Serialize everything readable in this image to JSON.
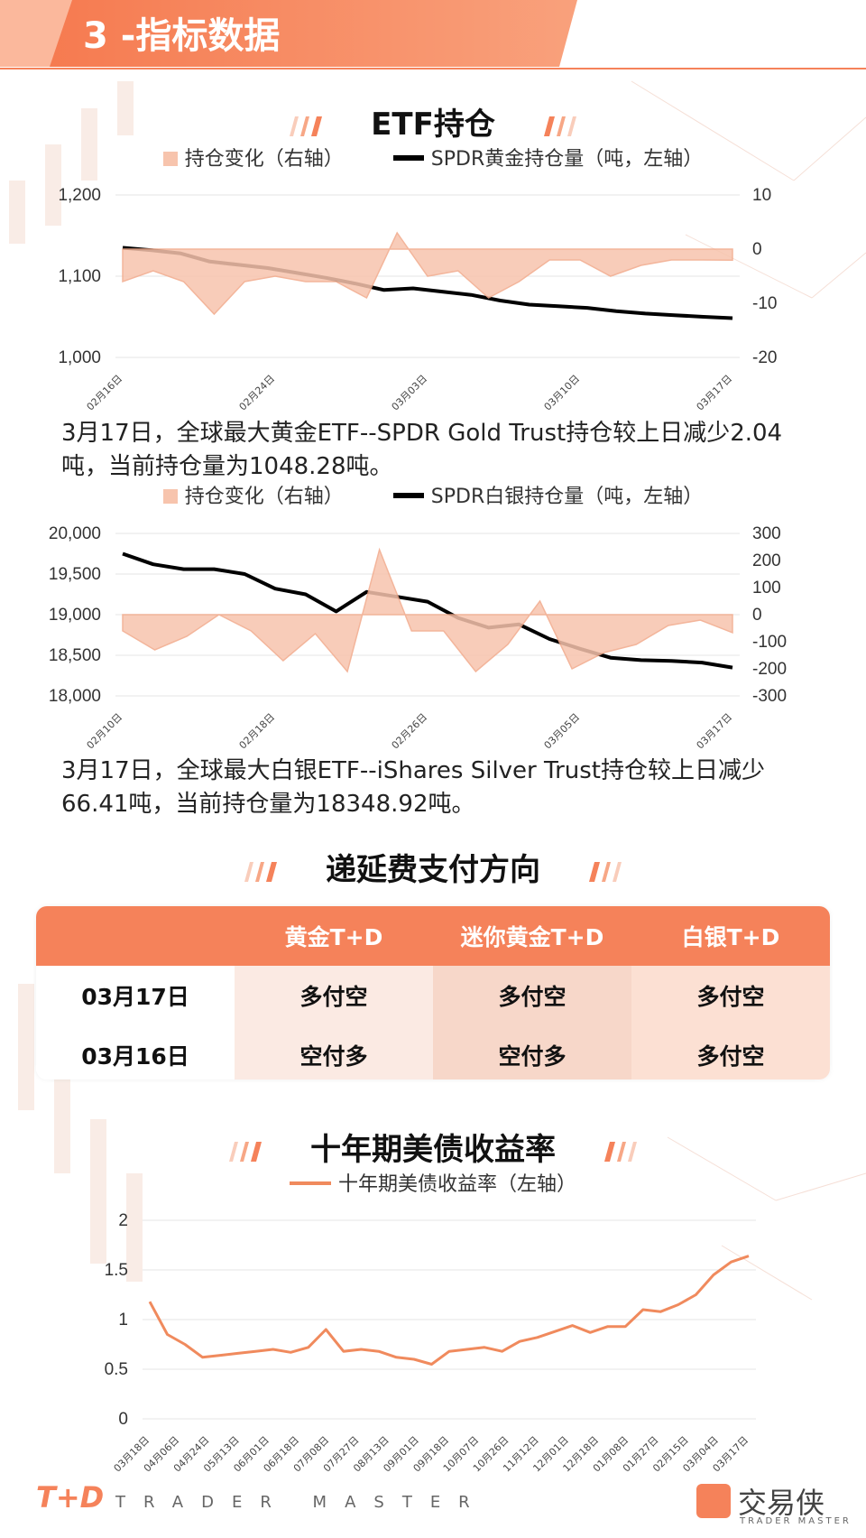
{
  "header": {
    "title": "3 -指标数据"
  },
  "etf": {
    "title": "ETF持仓",
    "gold": {
      "legend_fill": "持仓变化（右轴）",
      "legend_line": "SPDR黄金持仓量（吨，左轴）",
      "note": "3月17日，全球最大黄金ETF--SPDR Gold Trust持仓较上日减少2.04吨，当前持仓量为1048.28吨。"
    },
    "silver": {
      "legend_fill": "持仓变化（右轴）",
      "legend_line": "SPDR白银持仓量（吨，左轴）",
      "note": "3月17日，全球最大白银ETF--iShares Silver Trust持仓较上日减少66.41吨，当前持仓量为18348.92吨。"
    }
  },
  "fee": {
    "title": "递延费支付方向",
    "headers": [
      "",
      "黄金T+D",
      "迷你黄金T+D",
      "白银T+D"
    ],
    "rows": [
      [
        "03月17日",
        "多付空",
        "多付空",
        "多付空"
      ],
      [
        "03月16日",
        "空付多",
        "空付多",
        "多付空"
      ]
    ]
  },
  "yield": {
    "title": "十年期美债收益率",
    "legend": "十年期美债收益率（左轴）"
  },
  "footer": {
    "logo": "T+D",
    "tagline": "TRADER MASTER",
    "brand": "交易侠",
    "brand_sub": "TRADER MASTER"
  },
  "colors": {
    "accent": "#f5825a",
    "fill": "#f7c4ad",
    "line": "#000000",
    "yield_line": "#f08a5d"
  },
  "chart_data": [
    {
      "type": "line",
      "left_axis": {
        "ticks": [
          "1,000",
          "1,100",
          "1,200"
        ],
        "range": [
          1000,
          1200
        ]
      },
      "right_axis": {
        "ticks": [
          "-20",
          "-10",
          "0",
          "10"
        ],
        "range": [
          -20,
          10
        ]
      },
      "x_labels": [
        "02月16日",
        "02月24日",
        "03月03日",
        "03月10日",
        "03月17日"
      ],
      "grid": true,
      "legend_position": "top",
      "series": [
        {
          "name": "SPDR黄金持仓量（吨，左轴）",
          "kind": "line",
          "axis": "left",
          "values": [
            1135,
            1132,
            1128,
            1118,
            1114,
            1110,
            1104,
            1098,
            1091,
            1083,
            1085,
            1081,
            1077,
            1070,
            1065,
            1063,
            1061,
            1057,
            1054,
            1052,
            1050,
            1048.28
          ]
        },
        {
          "name": "持仓变化（右轴）",
          "kind": "area",
          "axis": "right",
          "values": [
            -6,
            -4,
            -6,
            -12,
            -6,
            -5,
            -6,
            -6,
            -9,
            3,
            -5,
            -4,
            -9,
            -6,
            -2,
            -2,
            -5,
            -3,
            -2,
            -2,
            -2.04
          ]
        }
      ]
    },
    {
      "type": "line",
      "left_axis": {
        "ticks": [
          "18,000",
          "18,500",
          "19,000",
          "19,500",
          "20,000"
        ],
        "range": [
          18000,
          20000
        ]
      },
      "right_axis": {
        "ticks": [
          "-300",
          "-200",
          "-100",
          "0",
          "100",
          "200",
          "300"
        ],
        "range": [
          -300,
          300
        ]
      },
      "x_labels": [
        "02月10日",
        "02月18日",
        "02月26日",
        "03月05日",
        "03月17日"
      ],
      "grid": true,
      "legend_position": "top",
      "series": [
        {
          "name": "SPDR白银持仓量（吨，左轴）",
          "kind": "line",
          "axis": "left",
          "values": [
            19750,
            19620,
            19560,
            19560,
            19500,
            19320,
            19250,
            19040,
            19280,
            19220,
            19160,
            18960,
            18840,
            18880,
            18700,
            18580,
            18470,
            18440,
            18430,
            18410,
            18348.92
          ]
        },
        {
          "name": "持仓变化（右轴）",
          "kind": "area",
          "axis": "right",
          "values": [
            -60,
            -130,
            -80,
            0,
            -60,
            -170,
            -70,
            -210,
            240,
            -60,
            -60,
            -210,
            -110,
            50,
            -200,
            -140,
            -110,
            -40,
            -20,
            -66.41
          ]
        }
      ]
    },
    {
      "type": "line",
      "left_axis": {
        "ticks": [
          "0",
          "0.5",
          "1",
          "1.5",
          "2"
        ],
        "range": [
          0,
          2
        ]
      },
      "x_labels": [
        "03月18日",
        "04月06日",
        "04月24日",
        "05月13日",
        "06月01日",
        "06月18日",
        "07月08日",
        "07月27日",
        "08月13日",
        "09月01日",
        "09月18日",
        "10月07日",
        "10月26日",
        "11月12日",
        "12月01日",
        "12月18日",
        "01月08日",
        "01月27日",
        "02月15日",
        "03月04日",
        "03月17日"
      ],
      "grid": true,
      "legend_position": "top",
      "series": [
        {
          "name": "十年期美债收益率（左轴）",
          "kind": "line",
          "axis": "left",
          "values": [
            1.18,
            0.85,
            0.75,
            0.62,
            0.64,
            0.66,
            0.68,
            0.7,
            0.67,
            0.72,
            0.9,
            0.68,
            0.7,
            0.68,
            0.62,
            0.6,
            0.55,
            0.68,
            0.7,
            0.72,
            0.68,
            0.78,
            0.82,
            0.88,
            0.94,
            0.87,
            0.93,
            0.93,
            1.1,
            1.08,
            1.15,
            1.25,
            1.45,
            1.58,
            1.64
          ]
        }
      ]
    }
  ]
}
